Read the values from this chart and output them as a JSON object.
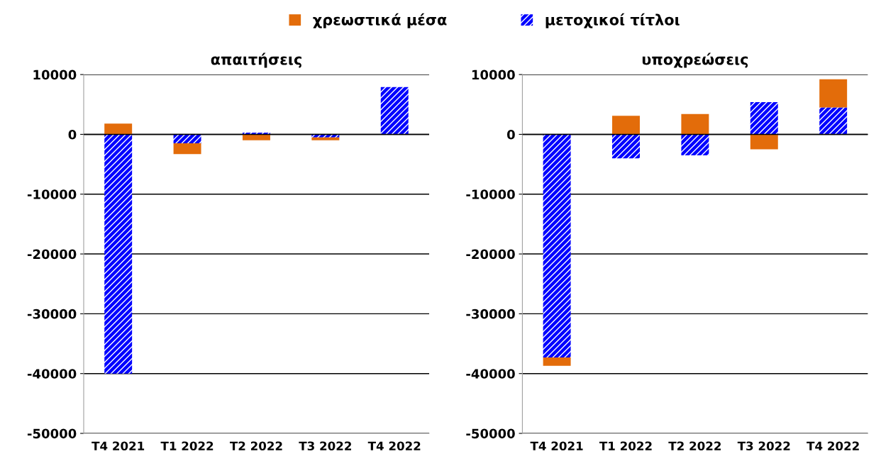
{
  "chart_data": [
    {
      "type": "bar",
      "title": "απαιτήσεις",
      "stacked": true,
      "grid": "y",
      "legend": "top",
      "categories": [
        "T4 2021",
        "T1 2022",
        "T2 2022",
        "T3 2022",
        "T4 2022"
      ],
      "series": [
        {
          "name": "μετοχικοί τίτλοι",
          "color": "#0000ff",
          "values": [
            -40000,
            -1500,
            300,
            -500,
            7900
          ]
        },
        {
          "name": "χρεωστικά μέσα",
          "color": "#e36c0a",
          "values": [
            1800,
            -1800,
            -1000,
            -500,
            null
          ]
        }
      ],
      "ylim": [
        -50000,
        10000
      ],
      "yticks": [
        -50000,
        -40000,
        -30000,
        -20000,
        -10000,
        0,
        10000
      ]
    },
    {
      "type": "bar",
      "title": "υποχρεώσεις",
      "stacked": true,
      "grid": "y",
      "categories": [
        "T4 2021",
        "T1 2022",
        "T2 2022",
        "T3 2022",
        "T4 2022"
      ],
      "series": [
        {
          "name": "μετοχικοί τίτλοι",
          "color": "#0000ff",
          "values": [
            -37300,
            -4000,
            -3500,
            5400,
            4500
          ]
        },
        {
          "name": "χρεωστικά μέσα",
          "color": "#e36c0a",
          "values": [
            -1400,
            3100,
            3400,
            -2500,
            4700
          ]
        }
      ],
      "ylim": [
        -50000,
        10000
      ],
      "yticks": [
        -50000,
        -40000,
        -30000,
        -20000,
        -10000,
        0,
        10000
      ]
    }
  ]
}
